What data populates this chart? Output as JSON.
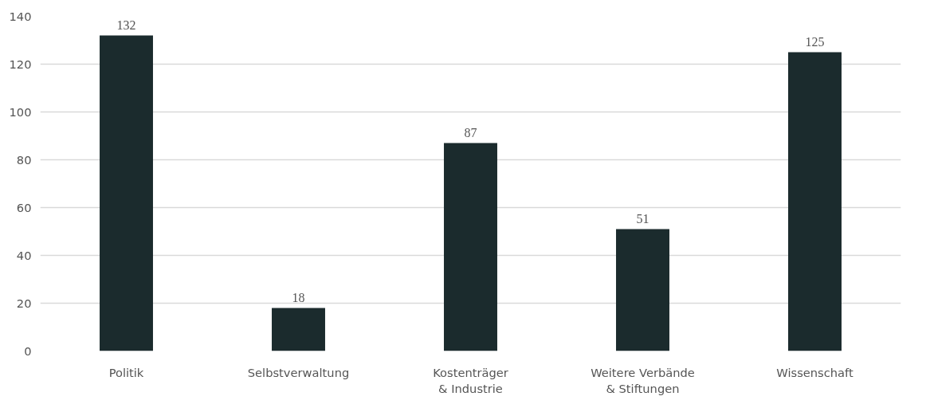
{
  "chart_data": {
    "type": "bar",
    "categories": [
      "Politik",
      "Selbstverwaltung",
      "Kostenträger\n& Industrie",
      "Weitere Verbände\n& Stiftungen",
      "Wissenschaft"
    ],
    "values": [
      132,
      18,
      87,
      51,
      125
    ],
    "color": "#1b2b2d",
    "ylim": [
      0,
      140
    ],
    "yticks": [
      0,
      20,
      40,
      60,
      80,
      100,
      120,
      140
    ],
    "grid": "y",
    "data_labels": true
  }
}
